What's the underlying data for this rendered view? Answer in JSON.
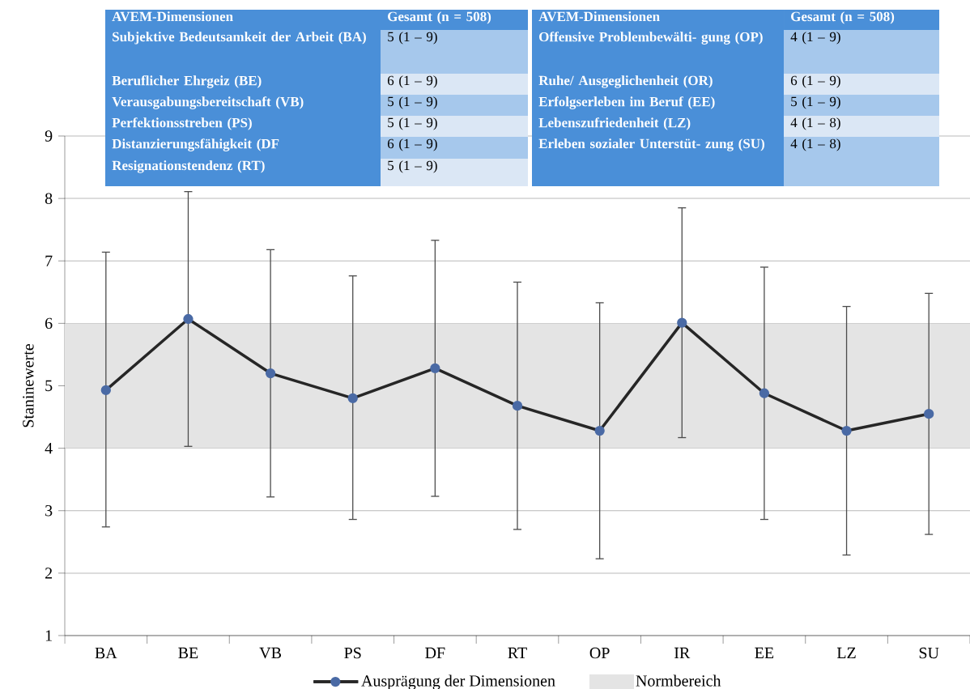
{
  "chart_data": {
    "type": "line",
    "ylabel": "Staninewerte",
    "categories": [
      "BA",
      "BE",
      "VB",
      "PS",
      "DF",
      "RT",
      "OP",
      "IR",
      "EE",
      "LZ",
      "SU"
    ],
    "series": [
      {
        "name": "Ausprägung der Dimensionen",
        "color": "#262626",
        "values": [
          4.93,
          6.07,
          5.2,
          4.8,
          5.28,
          4.68,
          4.28,
          6.01,
          4.88,
          4.28,
          4.55
        ],
        "errors": [
          [
            2.74,
            7.14
          ],
          [
            4.03,
            8.11
          ],
          [
            3.22,
            7.18
          ],
          [
            2.86,
            6.76
          ],
          [
            3.23,
            7.33
          ],
          [
            2.7,
            6.66
          ],
          [
            2.23,
            6.33
          ],
          [
            4.17,
            7.85
          ],
          [
            2.86,
            6.9
          ],
          [
            2.29,
            6.27
          ],
          [
            2.62,
            6.48
          ]
        ]
      }
    ],
    "ylim": [
      1,
      9
    ],
    "yticks": [
      1,
      2,
      3,
      4,
      5,
      6,
      7,
      8,
      9
    ],
    "grid": "y",
    "legend": "bottom",
    "marker": "circle",
    "line_style": "solid",
    "bands": [
      {
        "axis": "y",
        "from": 4,
        "to": 6,
        "label": "Normbereich",
        "color": "#e4e4e4"
      }
    ],
    "annotations": [
      "AVEM-Dimensionen",
      "Gesamt (n = 508)",
      "Subjektive Bedeutsamkeit der Arbeit (BA)",
      "5 (1 – 9)",
      "Beruflicher Ehrgeiz (BE)",
      "6 (1 – 9)",
      "Verausgabungsbereitschaft (VB)",
      "5 (1 – 9)",
      "Perfektionsstreben (PS)",
      "5 (1 – 9)",
      "Distanzierungsfähigkeit (DF",
      "6 (1 – 9)",
      "Resignationstendenz (RT)",
      "5 (1 – 9)",
      "AVEM-Dimensionen",
      "Gesamt (n = 508)",
      "Offensive Problembewälti- gung (OP)",
      "4 (1 – 9)",
      "Ruhe/ Ausgeglichenheit (OR)",
      "6 (1 – 9)",
      "Erfolgserleben im Beruf (EE)",
      "5 (1 – 9)",
      "Lebenszufriedenheit (LZ)",
      "4 (1 – 8)",
      "Erleben sozialer Unterstüt- zung (SU)",
      "4 (1 – 8)"
    ]
  }
}
